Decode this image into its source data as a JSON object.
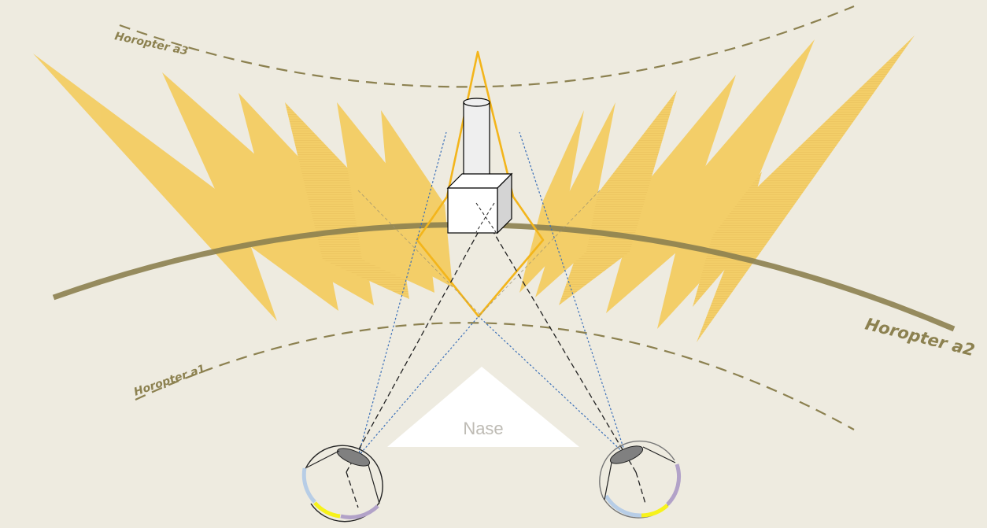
{
  "labels": {
    "horopter_a1": "Horopter a1",
    "horopter_a2": "Horopter a2",
    "horopter_a3": "Horopter a3",
    "nose": "Nase"
  },
  "colors": {
    "background": "#EEEBE0",
    "horopter": "#8C8150",
    "fan": "#F5C33B",
    "object_outline": "#F3B51B",
    "nose": "#FFFFFF",
    "nose_text": "#BEBBB4",
    "sightline_blue": "#3A6FB8",
    "sightline_black": "#222222",
    "retina_blue": "#B7CDE6",
    "retina_yellow": "#F7F21A",
    "retina_purple": "#B2A2C8",
    "lens": "#808080"
  }
}
